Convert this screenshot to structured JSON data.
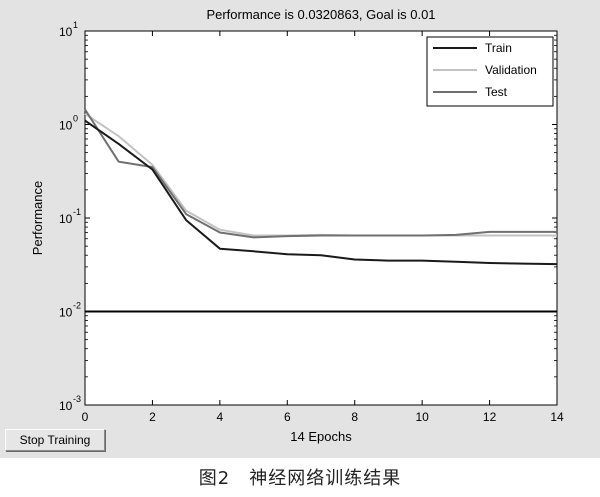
{
  "window": {
    "stop_button_label": "Stop Training"
  },
  "caption": "图2　神经网络训练结果",
  "chart_data": {
    "type": "line",
    "title": "Performance is 0.0320863, Goal is 0.01",
    "xlabel": "14 Epochs",
    "ylabel": "Performance",
    "xlim": [
      0,
      14
    ],
    "ylim": [
      0.001,
      10
    ],
    "yscale": "log",
    "x_ticks": [
      0,
      2,
      4,
      6,
      8,
      10,
      12,
      14
    ],
    "y_ticks": [
      {
        "base": "10",
        "exp": "-3",
        "value": 0.001
      },
      {
        "base": "10",
        "exp": "-2",
        "value": 0.01
      },
      {
        "base": "10",
        "exp": "-1",
        "value": 0.1
      },
      {
        "base": "10",
        "exp": "0",
        "value": 1
      },
      {
        "base": "10",
        "exp": "1",
        "value": 10
      }
    ],
    "grid": false,
    "legend_position": "top-right",
    "series": [
      {
        "name": "Train",
        "color": "#1a1a1a",
        "x": [
          0,
          1,
          2,
          3,
          4,
          5,
          6,
          7,
          8,
          9,
          10,
          11,
          12,
          13,
          14
        ],
        "values": [
          1.1,
          0.62,
          0.33,
          0.095,
          0.047,
          0.044,
          0.041,
          0.04,
          0.036,
          0.035,
          0.035,
          0.034,
          0.033,
          0.0325,
          0.0321
        ]
      },
      {
        "name": "Validation",
        "color": "#c2c2c2",
        "x": [
          0,
          1,
          2,
          3,
          4,
          5,
          6,
          7,
          8,
          9,
          10,
          11,
          12,
          13,
          14
        ],
        "values": [
          1.3,
          0.75,
          0.37,
          0.12,
          0.075,
          0.065,
          0.065,
          0.066,
          0.065,
          0.065,
          0.065,
          0.065,
          0.065,
          0.065,
          0.065
        ]
      },
      {
        "name": "Test",
        "color": "#707070",
        "x": [
          0,
          1,
          2,
          3,
          4,
          5,
          6,
          7,
          8,
          9,
          10,
          11,
          12,
          13,
          14
        ],
        "values": [
          1.45,
          0.4,
          0.35,
          0.11,
          0.07,
          0.062,
          0.064,
          0.065,
          0.065,
          0.065,
          0.065,
          0.066,
          0.071,
          0.071,
          0.071
        ]
      }
    ],
    "goal": {
      "value": 0.01,
      "color": "#000000"
    }
  }
}
